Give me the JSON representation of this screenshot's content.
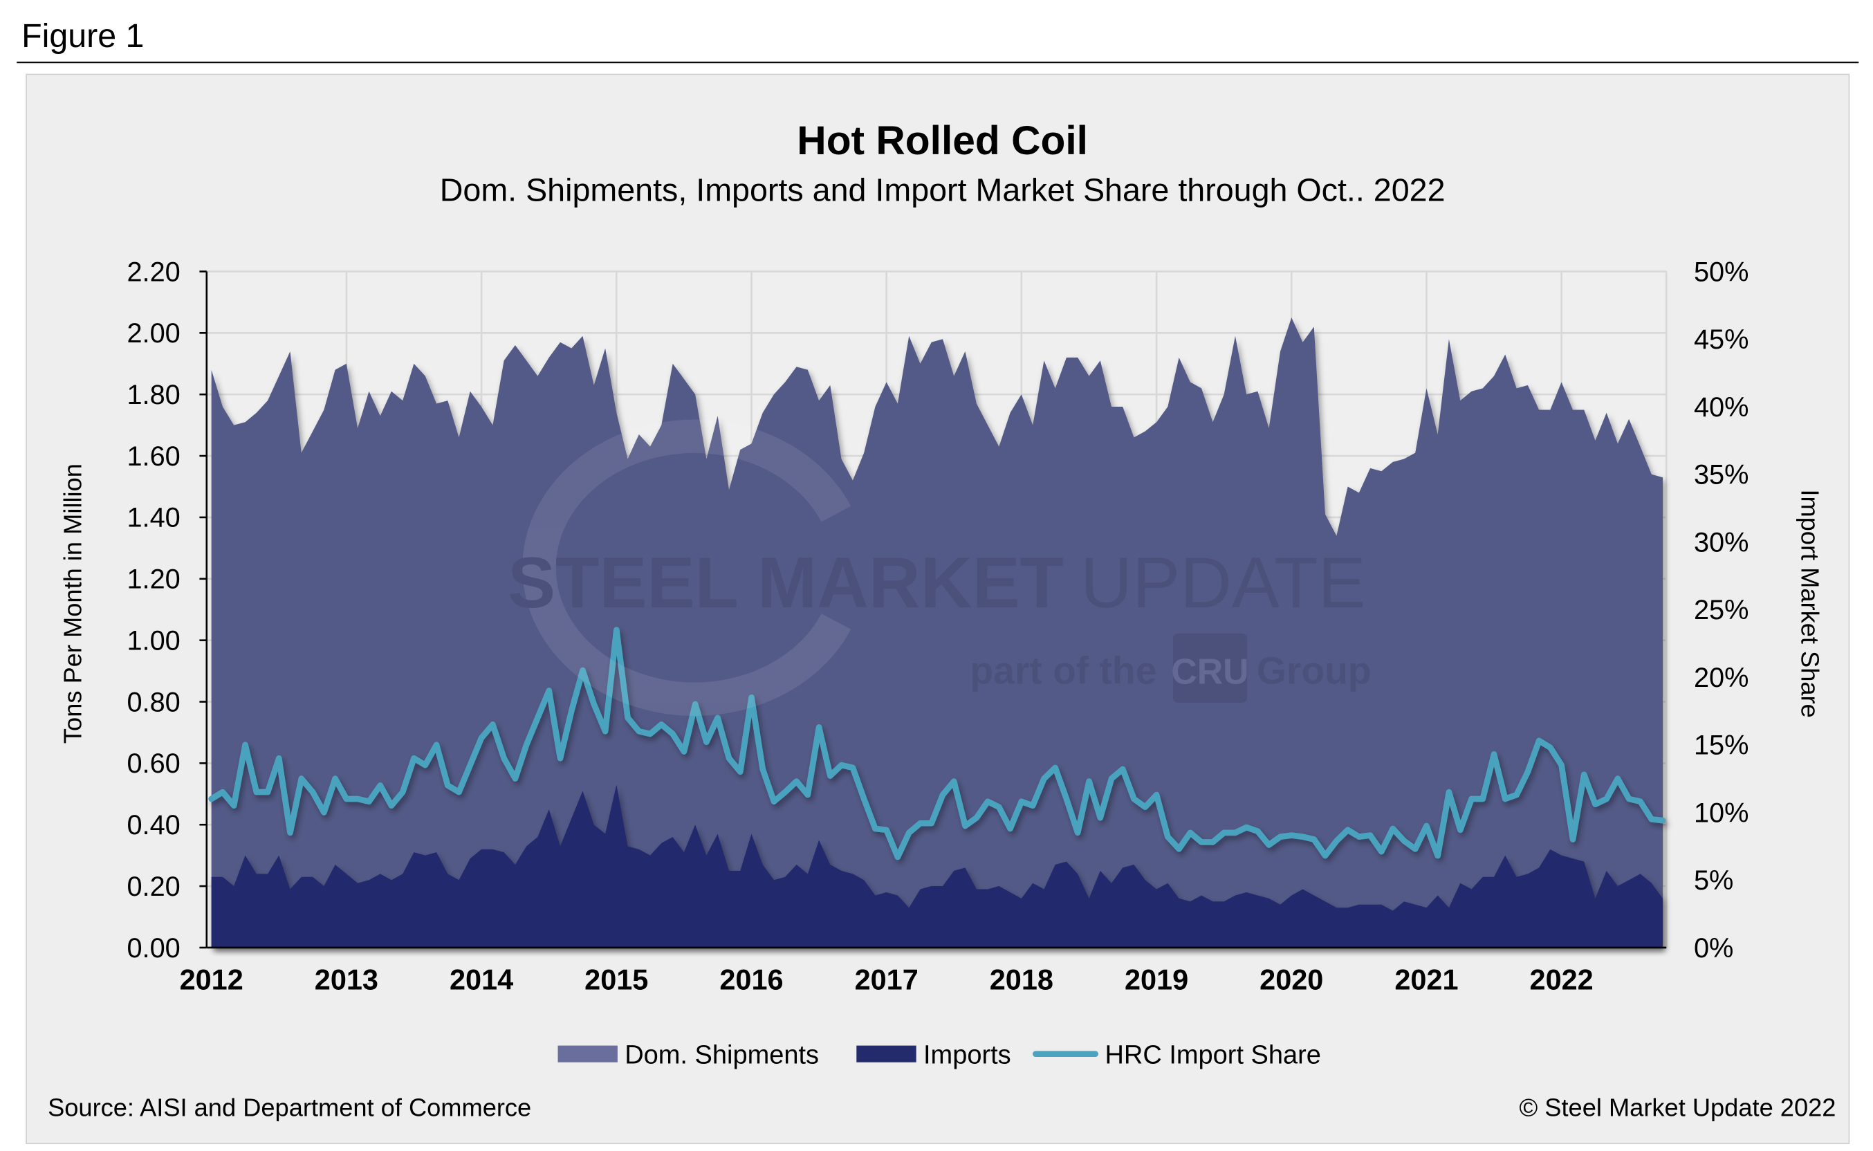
{
  "figure_label": "Figure 1",
  "source": "Source: AISI and Department of Commerce",
  "copyright": "© Steel Market Update 2022",
  "watermark": {
    "line1_bold": "STEEL MARKET",
    "line1_light": "UPDATE",
    "line2a": "part of the",
    "logo": "CRU",
    "line2b": "Group"
  },
  "colors": {
    "background": "#eeeeee",
    "dom_shipments": "#525a87",
    "dom_legend": "#6a6e9c",
    "imports": "#242b6d",
    "import_share": "#4aa3bf",
    "grid": "#d8d8d8"
  },
  "chart_data": {
    "type": "area+line",
    "title": "Hot Rolled Coil",
    "subtitle": "Dom. Shipments, Imports and Import Market Share through Oct.. 2022",
    "ylabel": "Tons Per Month in Million",
    "y2label": "Import Market Share",
    "ylim": [
      0,
      2.2
    ],
    "y2lim": [
      0,
      50
    ],
    "yticks": [
      "0.00",
      "0.20",
      "0.40",
      "0.60",
      "0.80",
      "1.00",
      "1.20",
      "1.40",
      "1.60",
      "1.80",
      "2.00",
      "2.20"
    ],
    "y2ticks": [
      "0%",
      "5%",
      "10%",
      "15%",
      "20%",
      "25%",
      "30%",
      "35%",
      "40%",
      "45%",
      "50%"
    ],
    "xticks": [
      "2012",
      "2013",
      "2014",
      "2015",
      "2016",
      "2017",
      "2018",
      "2019",
      "2020",
      "2021",
      "2022"
    ],
    "x_start": "2012-01",
    "x_end": "2022-10",
    "frequency": "monthly",
    "grid": true,
    "legend_position": "bottom",
    "series": [
      {
        "name": "Dom. Shipments",
        "type": "area",
        "axis": "left",
        "values": [
          1.88,
          1.76,
          1.7,
          1.71,
          1.74,
          1.78,
          1.86,
          1.94,
          1.61,
          1.68,
          1.75,
          1.88,
          1.9,
          1.69,
          1.81,
          1.73,
          1.81,
          1.78,
          1.9,
          1.86,
          1.77,
          1.78,
          1.66,
          1.81,
          1.76,
          1.7,
          1.91,
          1.96,
          1.91,
          1.86,
          1.92,
          1.97,
          1.95,
          1.99,
          1.83,
          1.95,
          1.74,
          1.59,
          1.67,
          1.63,
          1.7,
          1.9,
          1.85,
          1.8,
          1.59,
          1.73,
          1.49,
          1.62,
          1.64,
          1.74,
          1.8,
          1.84,
          1.89,
          1.88,
          1.78,
          1.83,
          1.59,
          1.52,
          1.61,
          1.76,
          1.84,
          1.77,
          1.99,
          1.9,
          1.97,
          1.98,
          1.86,
          1.94,
          1.77,
          1.7,
          1.63,
          1.74,
          1.8,
          1.7,
          1.91,
          1.82,
          1.92,
          1.92,
          1.86,
          1.91,
          1.76,
          1.76,
          1.66,
          1.68,
          1.71,
          1.76,
          1.92,
          1.84,
          1.82,
          1.71,
          1.8,
          1.99,
          1.8,
          1.81,
          1.69,
          1.94,
          2.05,
          1.97,
          2.02,
          1.41,
          1.34,
          1.5,
          1.48,
          1.56,
          1.55,
          1.58,
          1.59,
          1.61,
          1.82,
          1.67,
          1.98,
          1.78,
          1.81,
          1.82,
          1.86,
          1.93,
          1.82,
          1.83,
          1.75,
          1.75,
          1.84,
          1.75,
          1.75,
          1.65,
          1.74,
          1.64,
          1.72,
          1.63,
          1.54,
          1.53
        ]
      },
      {
        "name": "Imports",
        "type": "area",
        "axis": "left",
        "values": [
          0.23,
          0.23,
          0.2,
          0.3,
          0.24,
          0.24,
          0.3,
          0.19,
          0.23,
          0.23,
          0.2,
          0.27,
          0.24,
          0.21,
          0.22,
          0.24,
          0.22,
          0.24,
          0.31,
          0.3,
          0.31,
          0.24,
          0.22,
          0.29,
          0.32,
          0.32,
          0.31,
          0.27,
          0.33,
          0.36,
          0.45,
          0.33,
          0.42,
          0.51,
          0.4,
          0.37,
          0.53,
          0.33,
          0.32,
          0.3,
          0.34,
          0.36,
          0.31,
          0.4,
          0.3,
          0.37,
          0.25,
          0.25,
          0.37,
          0.27,
          0.22,
          0.23,
          0.27,
          0.24,
          0.35,
          0.27,
          0.25,
          0.24,
          0.22,
          0.17,
          0.18,
          0.17,
          0.13,
          0.19,
          0.2,
          0.2,
          0.25,
          0.26,
          0.19,
          0.19,
          0.2,
          0.18,
          0.16,
          0.21,
          0.19,
          0.27,
          0.28,
          0.24,
          0.16,
          0.25,
          0.21,
          0.26,
          0.27,
          0.22,
          0.19,
          0.21,
          0.16,
          0.15,
          0.17,
          0.15,
          0.15,
          0.17,
          0.18,
          0.17,
          0.16,
          0.14,
          0.17,
          0.19,
          0.17,
          0.15,
          0.13,
          0.13,
          0.14,
          0.14,
          0.14,
          0.12,
          0.15,
          0.14,
          0.13,
          0.17,
          0.13,
          0.21,
          0.19,
          0.23,
          0.23,
          0.3,
          0.23,
          0.24,
          0.26,
          0.32,
          0.3,
          0.29,
          0.28,
          0.16,
          0.25,
          0.2,
          0.22,
          0.24,
          0.21,
          0.16
        ]
      },
      {
        "name": "HRC Import Share",
        "type": "line",
        "axis": "right",
        "values": [
          11,
          11.5,
          10.5,
          15,
          11.5,
          11.5,
          14,
          8.5,
          12.5,
          11.5,
          10,
          12.5,
          11,
          11,
          10.8,
          12,
          10.5,
          11.5,
          14,
          13.5,
          15,
          12,
          11.5,
          13.5,
          15.5,
          16.5,
          14,
          12.5,
          15,
          17,
          19,
          14,
          17.5,
          20.5,
          18,
          16,
          23.5,
          17,
          16,
          15.8,
          16.5,
          15.8,
          14.5,
          18,
          15.2,
          17,
          14,
          13,
          18.5,
          13.2,
          10.8,
          11.5,
          12.3,
          11.3,
          16.3,
          12.7,
          13.5,
          13.3,
          11,
          8.8,
          8.7,
          6.7,
          8.5,
          9.2,
          9.2,
          11.3,
          12.3,
          9,
          9.6,
          10.8,
          10.4,
          8.8,
          10.8,
          10.5,
          12.5,
          13.3,
          11,
          8.5,
          12.3,
          9.6,
          12.5,
          13.2,
          11,
          10.4,
          11.3,
          8.2,
          7.3,
          8.5,
          7.8,
          7.8,
          8.5,
          8.5,
          8.9,
          8.6,
          7.6,
          8.2,
          8.3,
          8.2,
          8,
          6.8,
          7.9,
          8.7,
          8.2,
          8.3,
          7.1,
          8.8,
          7.9,
          7.3,
          9,
          6.8,
          11.5,
          8.7,
          11,
          11,
          14.3,
          11,
          11.3,
          13,
          15.3,
          14.8,
          13.5,
          8,
          12.8,
          10.6,
          11,
          12.5,
          11,
          10.8,
          9.5,
          9.4
        ]
      }
    ]
  }
}
